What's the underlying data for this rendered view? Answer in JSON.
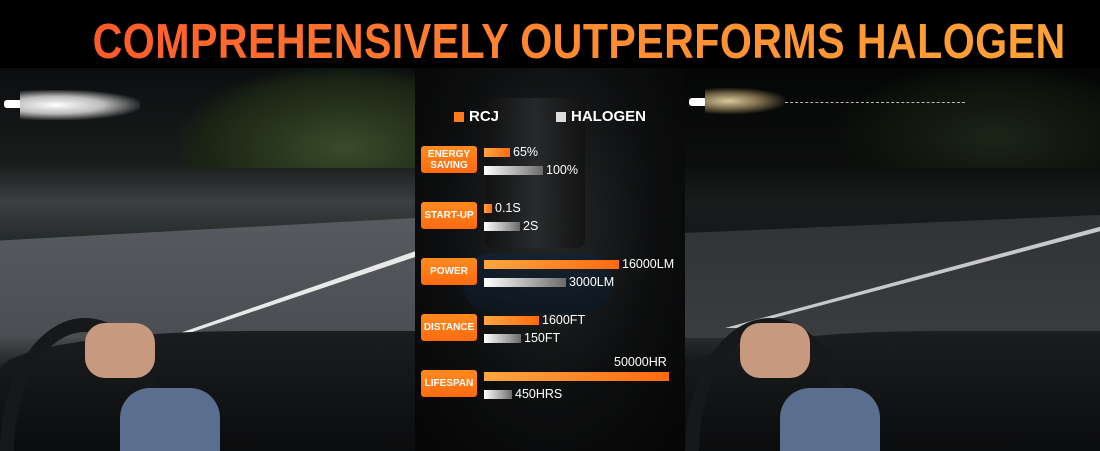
{
  "title": "COMPREHENSIVELY OUTPERFORMS HALOGEN",
  "colors": {
    "rcj": "#ff7a18",
    "halogen": "#c8c8c8",
    "label_bg": "#ff7a18"
  },
  "chart_data": {
    "type": "bar",
    "orientation": "horizontal",
    "legend": {
      "position": "top",
      "entries": [
        "RCJ",
        "HALOGEN"
      ]
    },
    "categories": [
      "ENERGY\nSAVING",
      "START-UP",
      "POWER",
      "DISTANCE",
      "LIFESPAN"
    ],
    "series": [
      {
        "name": "RCJ",
        "labels": [
          "65%",
          "0.1S",
          "16000LM",
          "1600FT",
          "50000HR"
        ]
      },
      {
        "name": "HALOGEN",
        "labels": [
          "100%",
          "2S",
          "3000LM",
          "150FT",
          "450HRS"
        ]
      }
    ]
  }
}
